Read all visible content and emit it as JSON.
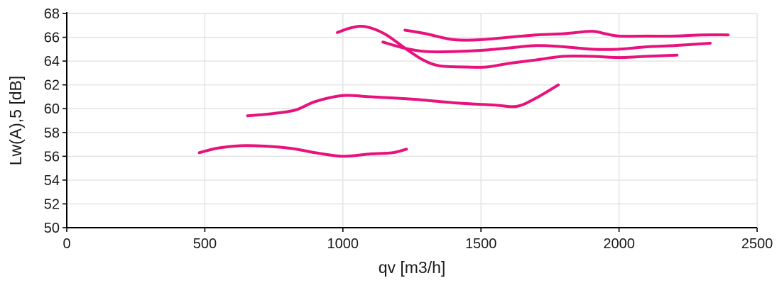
{
  "chart_data": {
    "type": "line",
    "title": "",
    "xlabel": "qv [m3/h]",
    "ylabel": "Lw(A),5 [dB]",
    "xlim": [
      0,
      2500
    ],
    "ylim": [
      50,
      68
    ],
    "x_ticks": [
      0,
      500,
      1000,
      1500,
      2000,
      2500
    ],
    "y_ticks": [
      50,
      52,
      54,
      56,
      58,
      60,
      62,
      64,
      66,
      68
    ],
    "grid": true,
    "legend": "none",
    "line_color": "#e8127c",
    "series": [
      {
        "points": [
          [
            480,
            56.3
          ],
          [
            550,
            56.7
          ],
          [
            650,
            56.9
          ],
          [
            800,
            56.7
          ],
          [
            900,
            56.3
          ],
          [
            1000,
            56.0
          ],
          [
            1100,
            56.2
          ],
          [
            1180,
            56.3
          ],
          [
            1230,
            56.6
          ]
        ]
      },
      {
        "points": [
          [
            655,
            59.4
          ],
          [
            750,
            59.6
          ],
          [
            830,
            59.9
          ],
          [
            900,
            60.6
          ],
          [
            1000,
            61.1
          ],
          [
            1100,
            61.0
          ],
          [
            1250,
            60.8
          ],
          [
            1400,
            60.5
          ],
          [
            1550,
            60.3
          ],
          [
            1630,
            60.2
          ],
          [
            1700,
            60.9
          ],
          [
            1780,
            62.0
          ]
        ]
      },
      {
        "points": [
          [
            980,
            66.4
          ],
          [
            1030,
            66.8
          ],
          [
            1080,
            66.9
          ],
          [
            1150,
            66.3
          ],
          [
            1230,
            65.0
          ],
          [
            1290,
            64.1
          ],
          [
            1350,
            63.6
          ],
          [
            1450,
            63.5
          ],
          [
            1520,
            63.5
          ],
          [
            1600,
            63.8
          ],
          [
            1700,
            64.1
          ],
          [
            1800,
            64.4
          ],
          [
            1900,
            64.4
          ],
          [
            2000,
            64.3
          ],
          [
            2100,
            64.4
          ],
          [
            2210,
            64.5
          ]
        ]
      },
      {
        "points": [
          [
            1145,
            65.6
          ],
          [
            1220,
            65.1
          ],
          [
            1300,
            64.8
          ],
          [
            1400,
            64.8
          ],
          [
            1500,
            64.9
          ],
          [
            1600,
            65.1
          ],
          [
            1700,
            65.3
          ],
          [
            1800,
            65.2
          ],
          [
            1900,
            65.0
          ],
          [
            2000,
            65.0
          ],
          [
            2100,
            65.2
          ],
          [
            2200,
            65.3
          ],
          [
            2330,
            65.5
          ]
        ]
      },
      {
        "points": [
          [
            1225,
            66.6
          ],
          [
            1300,
            66.3
          ],
          [
            1400,
            65.8
          ],
          [
            1500,
            65.8
          ],
          [
            1600,
            66.0
          ],
          [
            1700,
            66.2
          ],
          [
            1800,
            66.3
          ],
          [
            1900,
            66.5
          ],
          [
            1950,
            66.3
          ],
          [
            2000,
            66.1
          ],
          [
            2100,
            66.1
          ],
          [
            2200,
            66.1
          ],
          [
            2300,
            66.2
          ],
          [
            2395,
            66.2
          ]
        ]
      }
    ]
  }
}
